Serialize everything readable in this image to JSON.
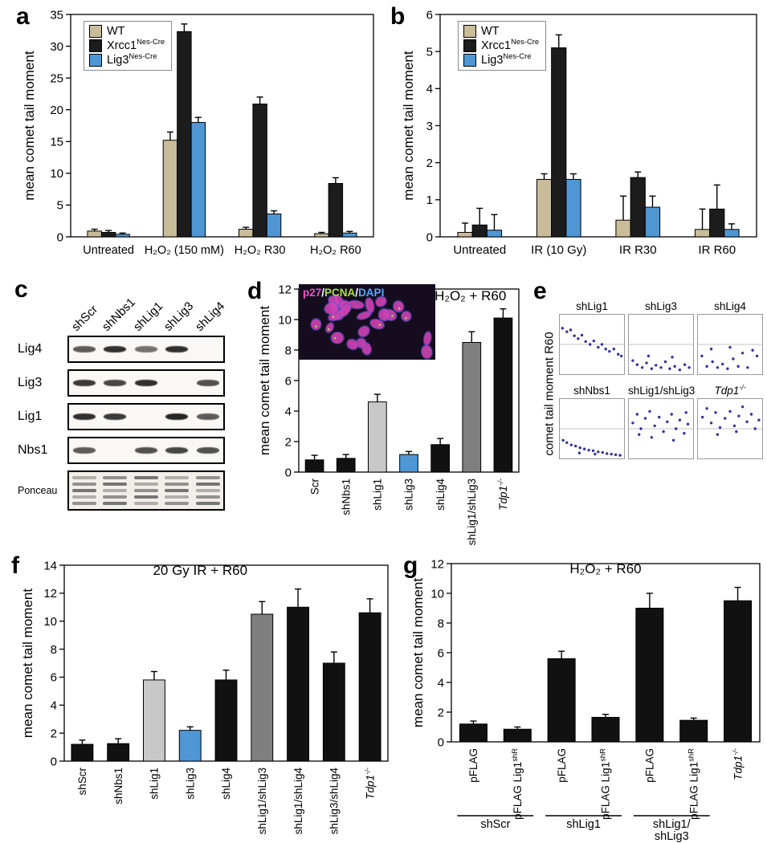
{
  "panels": {
    "a": {
      "label": "a"
    },
    "b": {
      "label": "b"
    },
    "c": {
      "label": "c"
    },
    "d": {
      "label": "d"
    },
    "e": {
      "label": "e"
    },
    "f": {
      "label": "f"
    },
    "g": {
      "label": "g"
    }
  },
  "legend": {
    "items": [
      {
        "base": "WT",
        "sup": "",
        "color": "#c9bc98"
      },
      {
        "base": "Xrcc1",
        "sup": "Nes-Cre",
        "color": "#1c1c1c"
      },
      {
        "base": "Lig3",
        "sup": "Nes-Cre",
        "color": "#4f97d4"
      }
    ]
  },
  "blot": {
    "lanes": [
      "shScr",
      "shNbs1",
      "shLig1",
      "shLig3",
      "shLig4"
    ],
    "rows": [
      {
        "label": "Lig4",
        "bands": [
          0.7,
          0.9,
          0.6,
          0.9,
          0.05
        ]
      },
      {
        "label": "Lig3",
        "bands": [
          0.85,
          0.8,
          0.9,
          0.05,
          0.75
        ]
      },
      {
        "label": "Lig1",
        "bands": [
          0.9,
          0.85,
          0.05,
          0.95,
          0.7
        ]
      },
      {
        "label": "Nbs1",
        "bands": [
          0.7,
          0.05,
          0.75,
          0.8,
          0.75
        ]
      },
      {
        "label": "Ponceau",
        "ponceau": true,
        "bands": [
          1,
          1,
          1,
          1,
          1
        ]
      }
    ]
  },
  "inset": {
    "label_segments": [
      {
        "text": "p27",
        "color": "#f050c8"
      },
      {
        "text": "/",
        "color": "#ffffff"
      },
      {
        "text": "PCNA",
        "color": "#a8e04a"
      },
      {
        "text": "/",
        "color": "#ffffff"
      },
      {
        "text": "DAPI",
        "color": "#58a8ff"
      }
    ]
  },
  "scatter": {
    "ylabel": "comet tail moment R60",
    "plots": [
      {
        "title": {
          "base": "shLig1"
        },
        "points": [
          [
            0.03,
            0.78
          ],
          [
            0.1,
            0.72
          ],
          [
            0.16,
            0.75
          ],
          [
            0.22,
            0.65
          ],
          [
            0.28,
            0.6
          ],
          [
            0.34,
            0.66
          ],
          [
            0.4,
            0.55
          ],
          [
            0.47,
            0.5
          ],
          [
            0.53,
            0.56
          ],
          [
            0.6,
            0.45
          ],
          [
            0.66,
            0.5
          ],
          [
            0.72,
            0.42
          ],
          [
            0.78,
            0.38
          ],
          [
            0.85,
            0.42
          ],
          [
            0.92,
            0.33
          ],
          [
            0.97,
            0.3
          ]
        ]
      },
      {
        "title": {
          "base": "shLig3"
        },
        "points": [
          [
            0.05,
            0.22
          ],
          [
            0.12,
            0.15
          ],
          [
            0.2,
            0.1
          ],
          [
            0.27,
            0.18
          ],
          [
            0.35,
            0.08
          ],
          [
            0.42,
            0.14
          ],
          [
            0.5,
            0.1
          ],
          [
            0.57,
            0.2
          ],
          [
            0.64,
            0.08
          ],
          [
            0.72,
            0.12
          ],
          [
            0.8,
            0.06
          ],
          [
            0.88,
            0.15
          ],
          [
            0.95,
            0.1
          ],
          [
            0.3,
            0.3
          ],
          [
            0.68,
            0.28
          ]
        ]
      },
      {
        "title": {
          "base": "shLig4"
        },
        "points": [
          [
            0.05,
            0.3
          ],
          [
            0.13,
            0.12
          ],
          [
            0.22,
            0.2
          ],
          [
            0.3,
            0.1
          ],
          [
            0.38,
            0.16
          ],
          [
            0.46,
            0.08
          ],
          [
            0.55,
            0.25
          ],
          [
            0.63,
            0.12
          ],
          [
            0.7,
            0.35
          ],
          [
            0.78,
            0.1
          ],
          [
            0.86,
            0.4
          ],
          [
            0.93,
            0.3
          ],
          [
            0.5,
            0.45
          ],
          [
            0.2,
            0.42
          ]
        ]
      },
      {
        "title": {
          "base": "shNbs1"
        },
        "points": [
          [
            0.04,
            0.3
          ],
          [
            0.1,
            0.26
          ],
          [
            0.17,
            0.22
          ],
          [
            0.24,
            0.2
          ],
          [
            0.31,
            0.17
          ],
          [
            0.38,
            0.15
          ],
          [
            0.45,
            0.13
          ],
          [
            0.52,
            0.12
          ],
          [
            0.6,
            0.1
          ],
          [
            0.67,
            0.09
          ],
          [
            0.74,
            0.07
          ],
          [
            0.81,
            0.06
          ],
          [
            0.88,
            0.05
          ],
          [
            0.95,
            0.04
          ],
          [
            0.3,
            0.08
          ],
          [
            0.55,
            0.06
          ]
        ]
      },
      {
        "title": {
          "base": "shLig1/shLig3"
        },
        "points": [
          [
            0.05,
            0.6
          ],
          [
            0.12,
            0.75
          ],
          [
            0.18,
            0.5
          ],
          [
            0.25,
            0.68
          ],
          [
            0.32,
            0.8
          ],
          [
            0.4,
            0.55
          ],
          [
            0.47,
            0.7
          ],
          [
            0.54,
            0.45
          ],
          [
            0.6,
            0.62
          ],
          [
            0.67,
            0.75
          ],
          [
            0.74,
            0.5
          ],
          [
            0.8,
            0.65
          ],
          [
            0.87,
            0.42
          ],
          [
            0.93,
            0.58
          ],
          [
            0.35,
            0.35
          ],
          [
            0.7,
            0.3
          ],
          [
            0.9,
            0.78
          ],
          [
            0.15,
            0.4
          ]
        ]
      },
      {
        "title": {
          "base": "Tdp1",
          "sup": "-/-",
          "italic": true
        },
        "points": [
          [
            0.06,
            0.7
          ],
          [
            0.13,
            0.85
          ],
          [
            0.2,
            0.6
          ],
          [
            0.27,
            0.78
          ],
          [
            0.34,
            0.52
          ],
          [
            0.42,
            0.68
          ],
          [
            0.5,
            0.8
          ],
          [
            0.57,
            0.55
          ],
          [
            0.64,
            0.72
          ],
          [
            0.7,
            0.88
          ],
          [
            0.77,
            0.62
          ],
          [
            0.84,
            0.75
          ],
          [
            0.9,
            0.5
          ],
          [
            0.96,
            0.65
          ],
          [
            0.3,
            0.4
          ],
          [
            0.6,
            0.45
          ]
        ]
      }
    ]
  },
  "chart_data": [
    {
      "id": "a",
      "type": "bar",
      "title": "",
      "ylabel": "mean comet tail moment",
      "ylim": [
        0,
        35
      ],
      "ytick": 5,
      "legend": true,
      "categories": [
        "Untreated",
        "H₂O₂ (150 mM)",
        "H₂O₂ R30",
        "H₂O₂ R60"
      ],
      "series": [
        {
          "name": {
            "base": "WT",
            "sup": ""
          },
          "color": "#c9bc98",
          "values": [
            0.9,
            15.2,
            1.2,
            0.5
          ],
          "errors": [
            0.3,
            1.3,
            0.3,
            0.2
          ]
        },
        {
          "name": {
            "base": "Xrcc1",
            "sup": "Nes-Cre"
          },
          "color": "#1c1c1c",
          "values": [
            0.7,
            32.3,
            20.9,
            8.4
          ],
          "errors": [
            0.3,
            1.2,
            1.1,
            0.9
          ]
        },
        {
          "name": {
            "base": "Lig3",
            "sup": "Nes-Cre"
          },
          "color": "#4f97d4",
          "values": [
            0.4,
            18.0,
            3.6,
            0.6
          ],
          "errors": [
            0.2,
            0.8,
            0.5,
            0.25
          ]
        }
      ]
    },
    {
      "id": "b",
      "type": "bar",
      "title": "",
      "ylabel": "mean comet tail moment",
      "ylim": [
        0,
        6
      ],
      "ytick": 1,
      "legend": true,
      "categories": [
        "Untreated",
        "IR (10 Gy)",
        "IR R30",
        "IR R60"
      ],
      "series": [
        {
          "name": {
            "base": "WT",
            "sup": ""
          },
          "color": "#c9bc98",
          "values": [
            0.12,
            1.55,
            0.45,
            0.2
          ],
          "errors": [
            0.25,
            0.15,
            0.65,
            0.55
          ]
        },
        {
          "name": {
            "base": "Xrcc1",
            "sup": "Nes-Cre"
          },
          "color": "#1c1c1c",
          "values": [
            0.32,
            5.1,
            1.6,
            0.75
          ],
          "errors": [
            0.45,
            0.35,
            0.15,
            0.65
          ]
        },
        {
          "name": {
            "base": "Lig3",
            "sup": "Nes-Cre"
          },
          "color": "#4f97d4",
          "values": [
            0.18,
            1.55,
            0.8,
            0.2
          ],
          "errors": [
            0.42,
            0.15,
            0.3,
            0.15
          ]
        }
      ]
    },
    {
      "id": "d",
      "type": "bar",
      "title": "H₂O₂ + R60",
      "ylabel": "mean comet tail moment",
      "ylim": [
        0,
        12
      ],
      "ytick": 2,
      "bars": [
        {
          "label": {
            "base": "Scr"
          },
          "value": 0.8,
          "err": 0.3,
          "color": "#111111"
        },
        {
          "label": {
            "base": "shNbs1"
          },
          "value": 0.9,
          "err": 0.25,
          "color": "#111111"
        },
        {
          "label": {
            "base": "shLig1"
          },
          "value": 4.6,
          "err": 0.5,
          "color": "#c8c8c8"
        },
        {
          "label": {
            "base": "shLig3"
          },
          "value": 1.15,
          "err": 0.2,
          "color": "#4f97d4"
        },
        {
          "label": {
            "base": "shLig4"
          },
          "value": 1.8,
          "err": 0.4,
          "color": "#111111"
        },
        {
          "label": {
            "base": "shLig1/shLig3"
          },
          "value": 8.5,
          "err": 0.7,
          "color": "#7f7f7f"
        },
        {
          "label": {
            "base": "Tdp1",
            "sup": "-/-",
            "italic": true
          },
          "value": 10.1,
          "err": 0.6,
          "color": "#111111"
        }
      ]
    },
    {
      "id": "f",
      "type": "bar",
      "title": "20 Gy IR + R60",
      "ylabel": "mean comet tail moment",
      "ylim": [
        0,
        14
      ],
      "ytick": 2,
      "bars": [
        {
          "label": {
            "base": "shScr"
          },
          "value": 1.2,
          "err": 0.3,
          "color": "#111111"
        },
        {
          "label": {
            "base": "shNbs1"
          },
          "value": 1.25,
          "err": 0.35,
          "color": "#111111"
        },
        {
          "label": {
            "base": "shLig1"
          },
          "value": 5.8,
          "err": 0.6,
          "color": "#c8c8c8"
        },
        {
          "label": {
            "base": "shLig3"
          },
          "value": 2.2,
          "err": 0.25,
          "color": "#4f97d4"
        },
        {
          "label": {
            "base": "shLig4"
          },
          "value": 5.8,
          "err": 0.7,
          "color": "#111111"
        },
        {
          "label": {
            "base": "shLig1/shLig3"
          },
          "value": 10.5,
          "err": 0.9,
          "color": "#7f7f7f"
        },
        {
          "label": {
            "base": "shLig1/shLig4"
          },
          "value": 11.0,
          "err": 1.3,
          "color": "#111111"
        },
        {
          "label": {
            "base": "shLig3/shLig4"
          },
          "value": 7.0,
          "err": 0.8,
          "color": "#111111"
        },
        {
          "label": {
            "base": "Tdp1",
            "sup": "-/-",
            "italic": true
          },
          "value": 10.6,
          "err": 1.0,
          "color": "#111111"
        }
      ]
    },
    {
      "id": "g",
      "type": "bar",
      "title": "H₂O₂ + R60",
      "ylabel": "mean comet tail moment",
      "ylim": [
        0,
        12
      ],
      "ytick": 2,
      "bars": [
        {
          "label": {
            "base": "pFLAG"
          },
          "value": 1.2,
          "err": 0.2,
          "color": "#111111"
        },
        {
          "label": {
            "base": "pFLAG Lig1",
            "sup": "shR"
          },
          "value": 0.85,
          "err": 0.15,
          "color": "#111111"
        },
        {
          "label": {
            "base": "pFLAG"
          },
          "value": 5.6,
          "err": 0.5,
          "color": "#111111"
        },
        {
          "label": {
            "base": "pFLAG Lig1",
            "sup": "shR"
          },
          "value": 1.65,
          "err": 0.2,
          "color": "#111111"
        },
        {
          "label": {
            "base": "pFLAG"
          },
          "value": 9.0,
          "err": 1.0,
          "color": "#111111"
        },
        {
          "label": {
            "base": "pFLAG Lig1",
            "sup": "shR"
          },
          "value": 1.45,
          "err": 0.15,
          "color": "#111111"
        },
        {
          "label": {
            "base": "Tdp1",
            "sup": "-/-",
            "italic": true
          },
          "value": 9.5,
          "err": 0.9,
          "color": "#111111"
        }
      ],
      "groups": [
        {
          "lines": [
            "shScr"
          ],
          "from": 0,
          "to": 1
        },
        {
          "lines": [
            "shLig1"
          ],
          "from": 2,
          "to": 3
        },
        {
          "lines": [
            "shLig1/",
            "shLig3"
          ],
          "from": 4,
          "to": 5
        }
      ]
    }
  ]
}
